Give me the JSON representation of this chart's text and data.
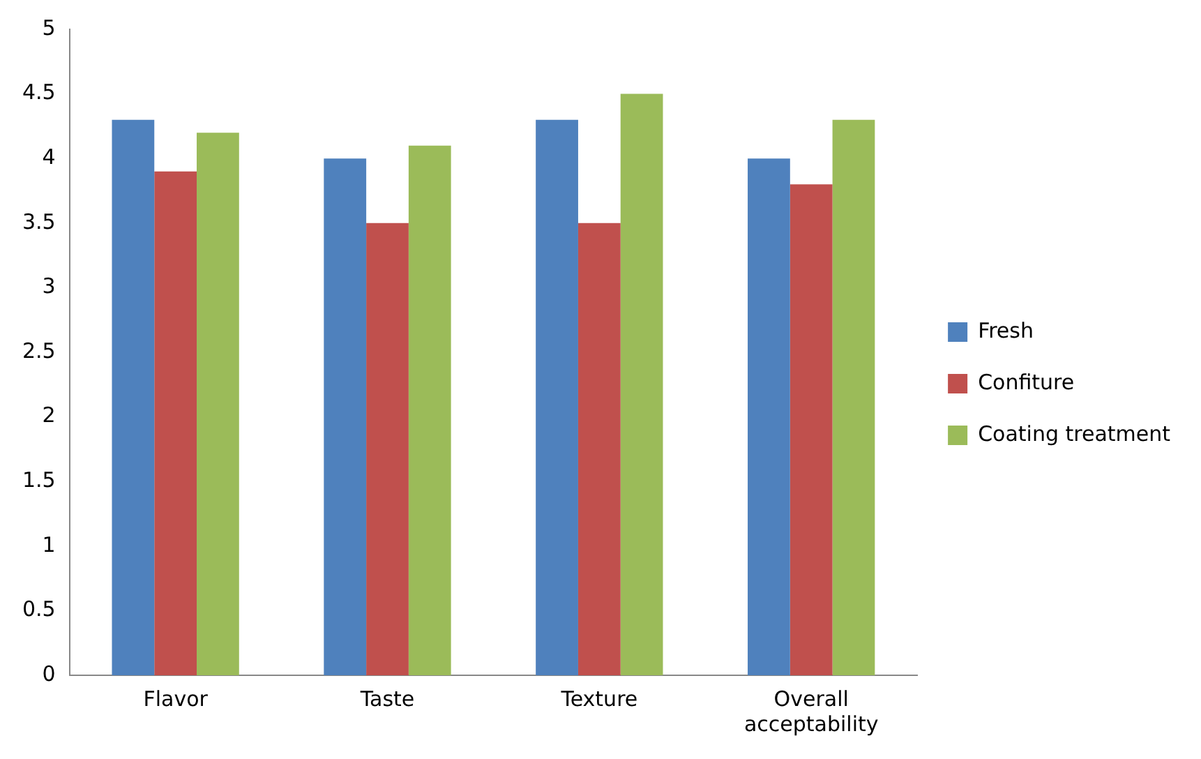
{
  "chart_data": {
    "type": "bar",
    "categories": [
      "Flavor",
      "Taste",
      "Texture",
      "Overall acceptability"
    ],
    "series": [
      {
        "name": "Fresh",
        "color": "#4f81bd",
        "values": [
          4.3,
          4.0,
          4.3,
          4.0
        ]
      },
      {
        "name": "Confiture",
        "color": "#c0504d",
        "values": [
          3.9,
          3.5,
          3.5,
          3.8
        ]
      },
      {
        "name": "Coating treatment",
        "color": "#9bbb59",
        "values": [
          4.2,
          4.1,
          4.5,
          4.3
        ]
      }
    ],
    "ylim": [
      0,
      5
    ],
    "yticks": [
      0,
      0.5,
      1,
      1.5,
      2,
      2.5,
      3,
      3.5,
      4,
      4.5,
      5
    ],
    "grid": false,
    "legend": "right"
  }
}
